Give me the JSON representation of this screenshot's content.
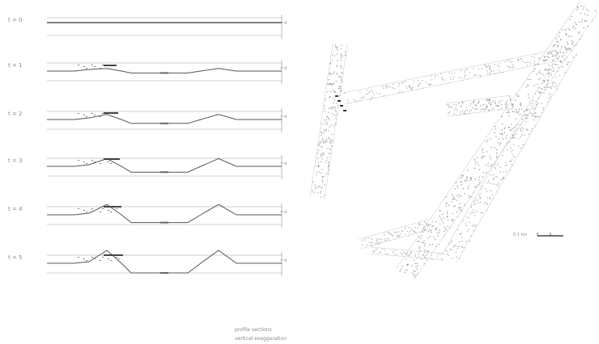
{
  "profiles": [
    {
      "label": "t = 0",
      "depth_label": "d",
      "centre_label": ""
    },
    {
      "label": "t = 1",
      "depth_label": "d",
      "centre_label": ""
    },
    {
      "label": "t = 2",
      "depth_label": "d",
      "centre_label": ""
    },
    {
      "label": "t = 3",
      "depth_label": "d",
      "centre_label": ""
    },
    {
      "label": "t = 4",
      "depth_label": "d",
      "centre_label": ""
    },
    {
      "label": "t = 5",
      "depth_label": "d",
      "centre_label": ""
    }
  ],
  "plan": {
    "scale_label": "0        1 km"
  },
  "caption": {
    "line1": "profile sections",
    "line2": "vertical exaggeration"
  }
}
